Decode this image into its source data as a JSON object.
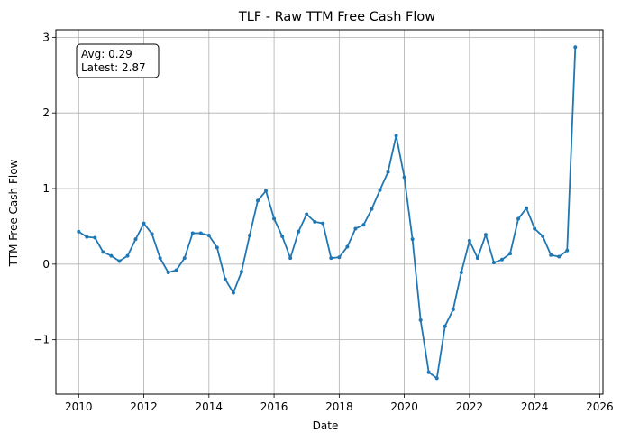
{
  "chart_data": {
    "type": "line",
    "title": "TLF - Raw TTM Free Cash Flow",
    "xlabel": "Date",
    "ylabel": "TTM Free Cash Flow",
    "xlim": [
      2009.3,
      2026.1
    ],
    "ylim": [
      -1.72,
      3.1
    ],
    "x_ticks": [
      2010,
      2012,
      2014,
      2016,
      2018,
      2020,
      2022,
      2024,
      2026
    ],
    "x_tick_labels": [
      "2010",
      "2012",
      "2014",
      "2016",
      "2018",
      "2020",
      "2022",
      "2024",
      "2026"
    ],
    "y_ticks": [
      -1,
      0,
      1,
      2,
      3
    ],
    "y_tick_labels": [
      "−1",
      "0",
      "1",
      "2",
      "3"
    ],
    "grid": true,
    "color": "#1f77b4",
    "annotation": {
      "line1": "Avg: 0.29",
      "line2": "Latest: 2.87"
    },
    "series": [
      {
        "x": [
          2010.0,
          2010.25,
          2010.5,
          2010.75,
          2011.0,
          2011.25,
          2011.5,
          2011.75,
          2012.0,
          2012.25,
          2012.5,
          2012.75,
          2013.0,
          2013.25,
          2013.5,
          2013.75,
          2014.0,
          2014.25,
          2014.5,
          2014.75,
          2015.0,
          2015.25,
          2015.5,
          2015.75,
          2016.0,
          2016.25,
          2016.5,
          2016.75,
          2017.0,
          2017.25,
          2017.5,
          2017.75,
          2018.0,
          2018.25,
          2018.5,
          2018.75,
          2019.0,
          2019.25,
          2019.5,
          2019.75,
          2020.0,
          2020.25,
          2020.5,
          2020.75,
          2021.0,
          2021.25,
          2021.5,
          2021.75,
          2022.0,
          2022.25,
          2022.5,
          2022.75,
          2023.0,
          2023.25,
          2023.5,
          2023.75,
          2024.0,
          2024.25,
          2024.5,
          2024.75,
          2025.0,
          2025.25
        ],
        "values": [
          0.43,
          0.36,
          0.35,
          0.16,
          0.11,
          0.04,
          0.11,
          0.33,
          0.54,
          0.4,
          0.08,
          -0.11,
          -0.08,
          0.08,
          0.41,
          0.41,
          0.38,
          0.22,
          -0.2,
          -0.38,
          -0.1,
          0.38,
          0.84,
          0.97,
          0.6,
          0.37,
          0.08,
          0.43,
          0.66,
          0.56,
          0.54,
          0.08,
          0.09,
          0.23,
          0.47,
          0.52,
          0.73,
          0.98,
          1.22,
          1.7,
          1.15,
          0.33,
          -0.74,
          -1.43,
          -1.51,
          -0.82,
          -0.6,
          -0.11,
          0.31,
          0.08,
          0.39,
          0.02,
          0.06,
          0.14,
          0.6,
          0.74,
          0.47,
          0.37,
          0.12,
          0.1,
          0.18,
          2.87
        ]
      }
    ]
  }
}
